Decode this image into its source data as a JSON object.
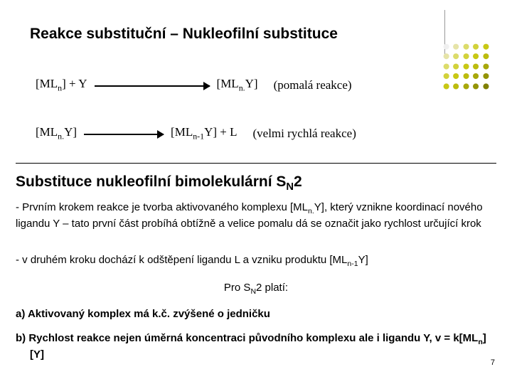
{
  "title": "Reakce substituční – Nukleofilní substituce",
  "subtitle_prefix": "Substituce nukleofilní bimolekulární S",
  "subtitle_sub": "N",
  "subtitle_suffix": "2",
  "eq1": {
    "left_a": "[ML",
    "left_a_sub": "n",
    "left_b": "] + Y",
    "mid_a": "[ML",
    "mid_a_sub": "n.",
    "mid_b": "Y]",
    "note": "(pomalá reakce)",
    "arrow_width": 162
  },
  "eq2": {
    "left_a": "[ML",
    "left_a_sub": "n.",
    "left_b": "Y]",
    "mid_a": "[ML",
    "mid_a_sub": "n-1",
    "mid_b": "Y] + L",
    "note": "(velmi rychlá reakce)",
    "arrow_width": 112
  },
  "para1_a": "- Prvním krokem reakce je tvorba aktivovaného komplexu [ML",
  "para1_a_sub": "n.",
  "para1_b": "Y], který vznikne koordinací nového ligandu Y – tato první část probíhá obtížně a velice pomalu dá se označit jako rychlost určující krok",
  "para2_a": "- v druhém kroku dochází k odštěpení ligandu L a vzniku produktu [ML",
  "para2_a_sub": "n-1",
  "para2_b": "Y]",
  "platí_a": "Pro S",
  "platí_sub": "N",
  "platí_b": "2 platí:",
  "item_a": "a)  Aktivovaný komplex má k.č. zvýšené o jedničku",
  "item_b_a": "b)  Rychlost reakce nejen úměrná koncentraci původního komplexu ale i ligandu Y, v = k[ML",
  "item_b_sub": "n",
  "item_b_b": "][Y]",
  "page": "7",
  "dot_colors": [
    "#f0f0f0",
    "#e6e4a8",
    "#dcdc6a",
    "#d2d23a",
    "#c8c814",
    "#e6e4a8",
    "#dcdc6a",
    "#d2d23a",
    "#c8c814",
    "#bcbc0e",
    "#dcdc6a",
    "#d2d23a",
    "#c8c814",
    "#bcbc0e",
    "#a8a80a",
    "#d2d23a",
    "#c8c814",
    "#bcbc0e",
    "#a8a80a",
    "#949406",
    "#c8c814",
    "#bcbc0e",
    "#a8a80a",
    "#949406",
    "#808002"
  ]
}
